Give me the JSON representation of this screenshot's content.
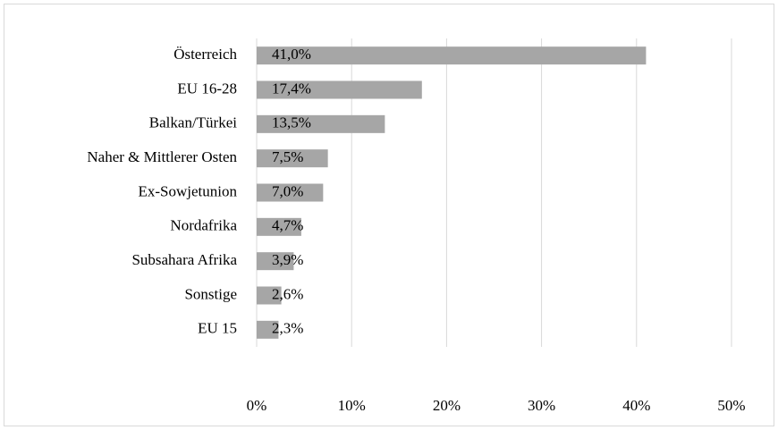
{
  "chart_data": {
    "type": "bar",
    "orientation": "horizontal",
    "categories": [
      "Österreich",
      "EU 16-28",
      "Balkan/Türkei",
      "Naher & Mittlerer Osten",
      "Ex-Sowjetunion",
      "Nordafrika",
      "Subsahara Afrika",
      "Sonstige",
      "EU 15"
    ],
    "values": [
      41.0,
      17.4,
      13.5,
      7.5,
      7.0,
      4.7,
      3.9,
      2.6,
      2.3
    ],
    "value_labels": [
      "41,0%",
      "17,4%",
      "13,5%",
      "7,5%",
      "7,0%",
      "4,7%",
      "3,9%",
      "2,6%",
      "2,3%"
    ],
    "color": "#a6a6a6",
    "xlim": [
      0,
      50
    ],
    "xticks": [
      {
        "value": 0,
        "label": "0%"
      },
      {
        "value": 10,
        "label": "10%"
      },
      {
        "value": 20,
        "label": "20%"
      },
      {
        "value": 30,
        "label": "30%"
      },
      {
        "value": 40,
        "label": "40%"
      },
      {
        "value": 50,
        "label": "50%"
      }
    ],
    "grid": true
  }
}
